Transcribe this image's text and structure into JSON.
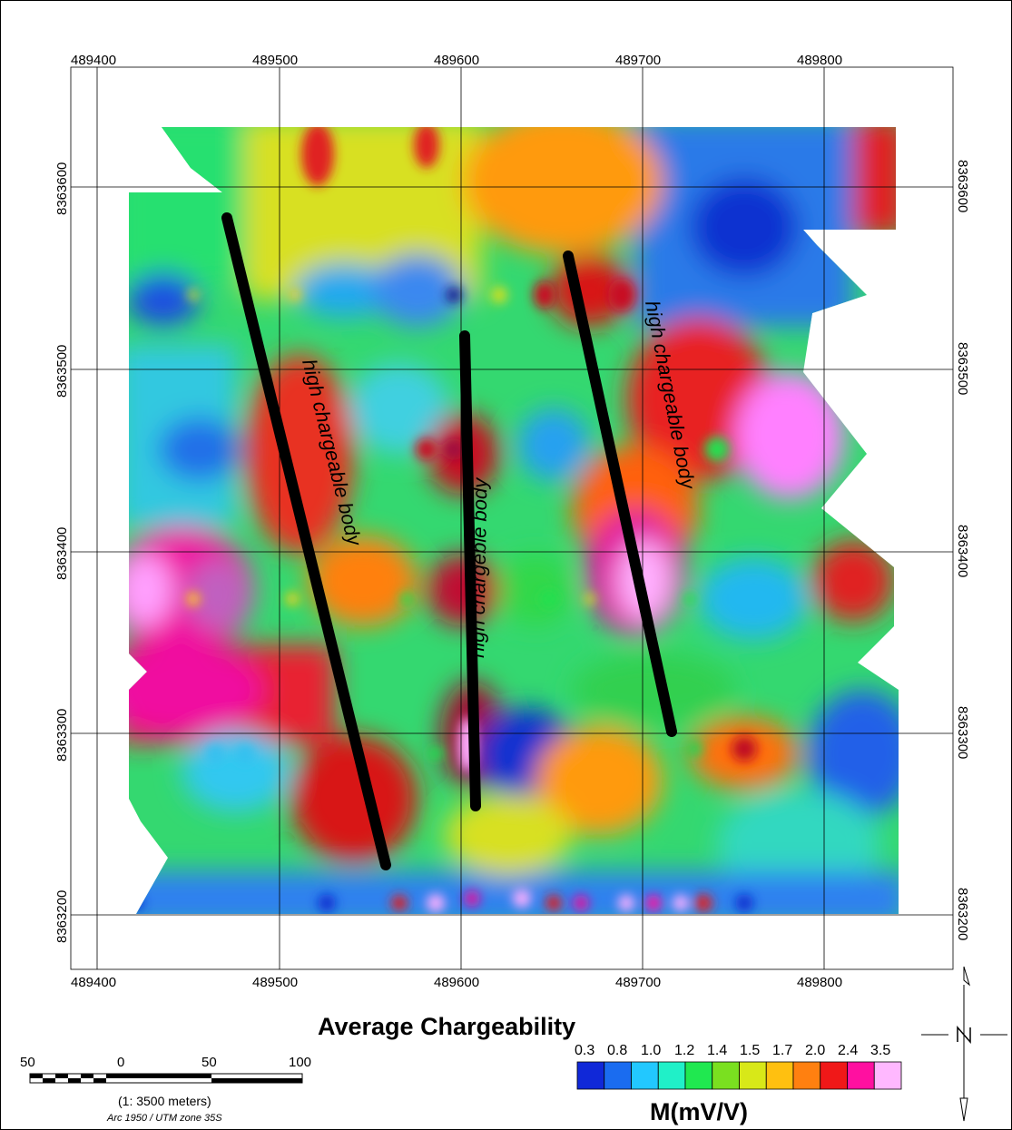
{
  "map_title": "Average Chargeability",
  "x_ticks": [
    "489400",
    "489500",
    "489600",
    "489700",
    "489800"
  ],
  "y_ticks": [
    "8363600",
    "8363500",
    "8363400",
    "8363300",
    "8363200"
  ],
  "annotations": [
    "high chargeable body",
    "high chargeble body",
    "high chargeable body"
  ],
  "legend": {
    "labels": [
      "0.3",
      "0.8",
      "1.0",
      "1.2",
      "1.4",
      "1.5",
      "1.7",
      "2.0",
      "2.4",
      "3.5"
    ],
    "units": "M(mV/V)",
    "colors": [
      "#1028d8",
      "#1a6cf0",
      "#22c8ff",
      "#20f0c8",
      "#20e850",
      "#7ae020",
      "#d8e818",
      "#ffc010",
      "#ff8010",
      "#f01818",
      "#ff10a0",
      "#ffb8ff"
    ]
  },
  "scale_bar": {
    "labels": [
      "50",
      "0",
      "50",
      "100"
    ],
    "ratio": "(1: 3500 meters)",
    "projection": "Arc 1950 / UTM zone 35S"
  }
}
